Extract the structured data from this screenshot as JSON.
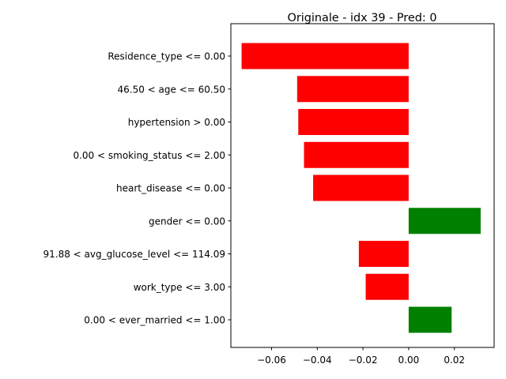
{
  "chart_data": {
    "type": "bar",
    "orientation": "horizontal",
    "title": "Originale - idx 39 - Pred: 0",
    "xlabel": "",
    "ylabel": "",
    "xlim": [
      -0.0778,
      0.0374
    ],
    "xticks": [
      -0.06,
      -0.04,
      -0.02,
      0.0,
      0.02
    ],
    "xtick_labels": [
      "−0.06",
      "−0.04",
      "−0.02",
      "0.00",
      "0.02"
    ],
    "categories": [
      "Residence_type <= 0.00",
      "46.50 < age <= 60.50",
      "hypertension > 0.00",
      "0.00 < smoking_status <= 2.00",
      "heart_disease <= 0.00",
      "gender <= 0.00",
      "91.88 < avg_glucose_level <= 114.09",
      "work_type <= 3.00",
      "0.00 < ever_married <= 1.00"
    ],
    "values": [
      -0.0731,
      -0.0488,
      -0.0483,
      -0.0458,
      -0.0418,
      0.0315,
      -0.0218,
      -0.0188,
      0.0188
    ],
    "colors": {
      "negative": "#ff0000",
      "positive": "#008000",
      "axis": "#000000"
    },
    "grid": false,
    "legend": "none"
  }
}
